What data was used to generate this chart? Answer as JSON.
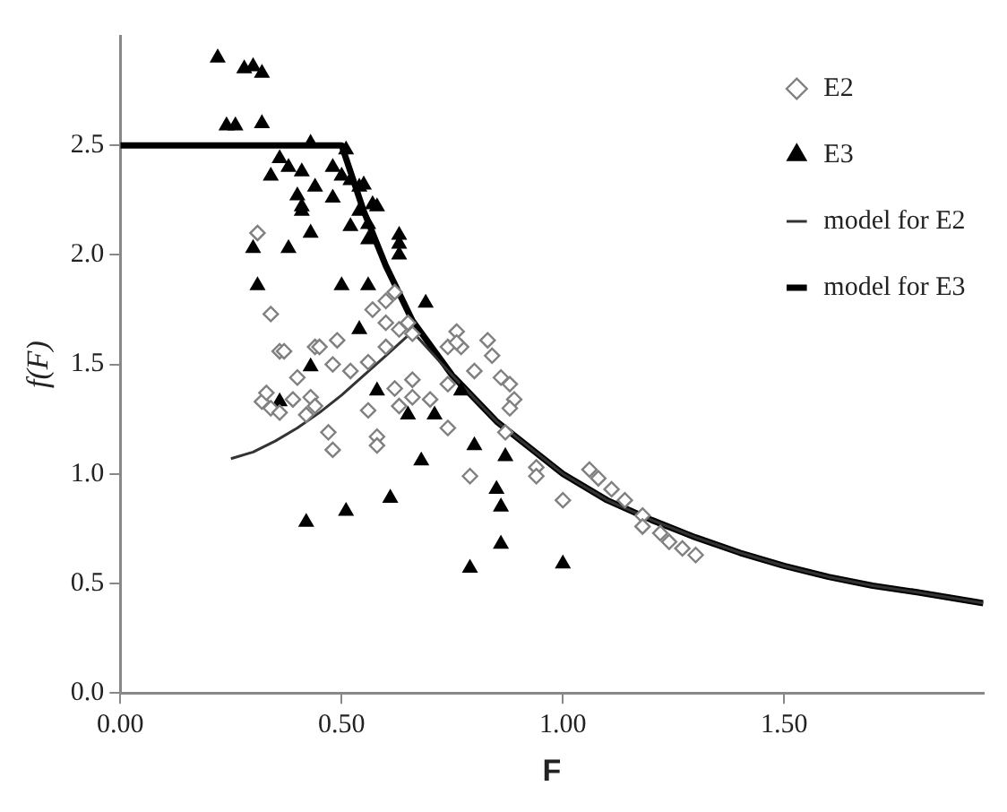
{
  "chart_data": {
    "type": "scatter",
    "xlabel": "F",
    "ylabel": "f(F)",
    "xlim": [
      0,
      1.95
    ],
    "ylim": [
      0,
      3
    ],
    "xticks": [
      {
        "value": 0,
        "label": "0.00"
      },
      {
        "value": 0.5,
        "label": "0.50"
      },
      {
        "value": 1,
        "label": "1.00"
      },
      {
        "value": 1.5,
        "label": "1.50"
      }
    ],
    "yticks": [
      {
        "value": 0,
        "label": "0.0"
      },
      {
        "value": 0.5,
        "label": "0.5"
      },
      {
        "value": 1,
        "label": "1.0"
      },
      {
        "value": 1.5,
        "label": "1.5"
      },
      {
        "value": 2,
        "label": "2.0"
      },
      {
        "value": 2.5,
        "label": "2.5"
      }
    ],
    "grid": false,
    "legend": "top right",
    "series": [
      {
        "name": "E2",
        "marker": "diamond",
        "color": "#808080",
        "x": [
          0.31,
          0.34,
          0.36,
          0.44,
          0.49,
          0.48,
          0.52,
          0.56,
          0.4,
          0.43,
          0.42,
          0.44,
          0.39,
          0.47,
          0.48,
          0.56,
          0.58,
          0.58,
          0.57,
          0.6,
          0.6,
          0.63,
          0.66,
          0.6,
          0.66,
          0.62,
          0.66,
          0.63,
          0.7,
          0.74,
          0.74,
          0.74,
          0.76,
          0.77,
          0.8,
          0.83,
          0.84,
          0.86,
          0.88,
          0.89,
          0.88,
          0.79,
          0.94,
          0.94,
          1.0,
          1.06,
          1.08,
          1.11,
          1.14,
          1.18,
          1.18,
          1.22,
          1.24,
          1.27,
          1.3,
          0.87,
          0.62,
          0.65,
          0.76,
          0.37,
          0.45,
          0.32,
          0.34,
          0.33,
          0.36
        ],
        "values": [
          2.1,
          1.73,
          1.56,
          1.58,
          1.61,
          1.5,
          1.47,
          1.51,
          1.44,
          1.35,
          1.27,
          1.31,
          1.34,
          1.19,
          1.11,
          1.29,
          1.17,
          1.13,
          1.75,
          1.79,
          1.69,
          1.66,
          1.64,
          1.58,
          1.43,
          1.39,
          1.35,
          1.31,
          1.34,
          1.21,
          1.41,
          1.58,
          1.65,
          1.58,
          1.47,
          1.61,
          1.54,
          1.44,
          1.41,
          1.34,
          1.3,
          0.99,
          1.03,
          0.99,
          0.88,
          1.02,
          0.98,
          0.93,
          0.88,
          0.81,
          0.76,
          0.73,
          0.69,
          0.66,
          0.63,
          1.19,
          1.83,
          1.69,
          1.6,
          1.56,
          1.58,
          1.33,
          1.3,
          1.37,
          1.28
        ]
      },
      {
        "name": "E3",
        "marker": "triangle",
        "color": "#000000",
        "x": [
          0.22,
          0.28,
          0.3,
          0.32,
          0.24,
          0.26,
          0.32,
          0.43,
          0.51,
          0.36,
          0.38,
          0.34,
          0.41,
          0.48,
          0.5,
          0.52,
          0.44,
          0.54,
          0.55,
          0.4,
          0.48,
          0.41,
          0.41,
          0.57,
          0.58,
          0.54,
          0.56,
          0.43,
          0.3,
          0.38,
          0.52,
          0.56,
          0.63,
          0.63,
          0.63,
          0.31,
          0.5,
          0.56,
          0.69,
          0.36,
          0.43,
          0.54,
          0.58,
          0.65,
          0.71,
          0.77,
          0.8,
          0.87,
          0.68,
          0.85,
          0.86,
          0.61,
          0.51,
          0.42,
          0.86,
          0.79,
          1.0
        ],
        "values": [
          2.9,
          2.85,
          2.86,
          2.83,
          2.59,
          2.59,
          2.6,
          2.51,
          2.48,
          2.44,
          2.4,
          2.36,
          2.38,
          2.4,
          2.36,
          2.34,
          2.31,
          2.31,
          2.32,
          2.27,
          2.26,
          2.22,
          2.2,
          2.23,
          2.22,
          2.2,
          2.14,
          2.1,
          2.03,
          2.03,
          2.13,
          2.07,
          2.09,
          2.05,
          2.0,
          1.86,
          1.86,
          1.86,
          1.78,
          1.33,
          1.49,
          1.66,
          1.38,
          1.27,
          1.27,
          1.38,
          1.13,
          1.08,
          1.06,
          0.93,
          0.85,
          0.89,
          0.83,
          0.78,
          0.68,
          0.57,
          0.59
        ]
      },
      {
        "name": "model for E2",
        "type": "line",
        "marker": "none",
        "color": "#333333",
        "x": [
          0.25,
          0.3,
          0.35,
          0.4,
          0.45,
          0.5,
          0.55,
          0.6,
          0.66,
          0.75,
          0.85,
          1.0,
          1.1,
          1.2,
          1.3,
          1.4,
          1.5,
          1.6,
          1.7,
          1.8,
          1.95
        ],
        "values": [
          1.07,
          1.1,
          1.15,
          1.21,
          1.28,
          1.36,
          1.45,
          1.54,
          1.65,
          1.45,
          1.24,
          1.0,
          0.88,
          0.79,
          0.71,
          0.64,
          0.58,
          0.53,
          0.49,
          0.46,
          0.41
        ]
      },
      {
        "name": "model for E3",
        "type": "line",
        "marker": "none",
        "color": "#000000",
        "x": [
          0,
          0.5,
          0.55,
          0.6,
          0.66,
          0.75,
          0.85,
          1.0,
          1.1,
          1.2,
          1.3,
          1.4,
          1.5,
          1.6,
          1.7,
          1.8,
          1.95
        ],
        "values": [
          2.5,
          2.5,
          2.2,
          1.95,
          1.7,
          1.45,
          1.24,
          1.0,
          0.88,
          0.79,
          0.71,
          0.64,
          0.58,
          0.53,
          0.49,
          0.46,
          0.41
        ]
      }
    ]
  }
}
